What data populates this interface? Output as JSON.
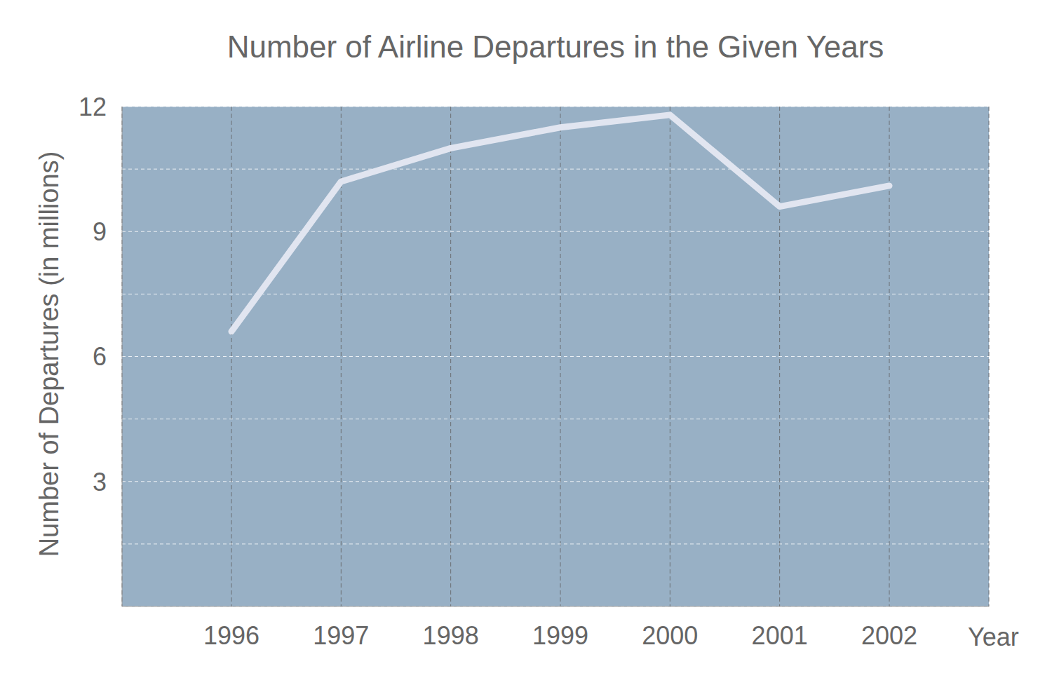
{
  "chart_data": {
    "type": "line",
    "title": "Number of Airline Departures in the Given Years",
    "x_label": "Year",
    "y_label": "Number of Departures (in millions)",
    "categories": [
      "1996",
      "1997",
      "1998",
      "1999",
      "2000",
      "2001",
      "2002"
    ],
    "values": [
      6.6,
      10.2,
      11.0,
      11.5,
      11.8,
      9.6,
      10.1
    ],
    "color": "#e1e5f0",
    "ylim": [
      0,
      12
    ],
    "yticks": [
      3,
      6,
      9,
      12
    ],
    "grid": true
  }
}
